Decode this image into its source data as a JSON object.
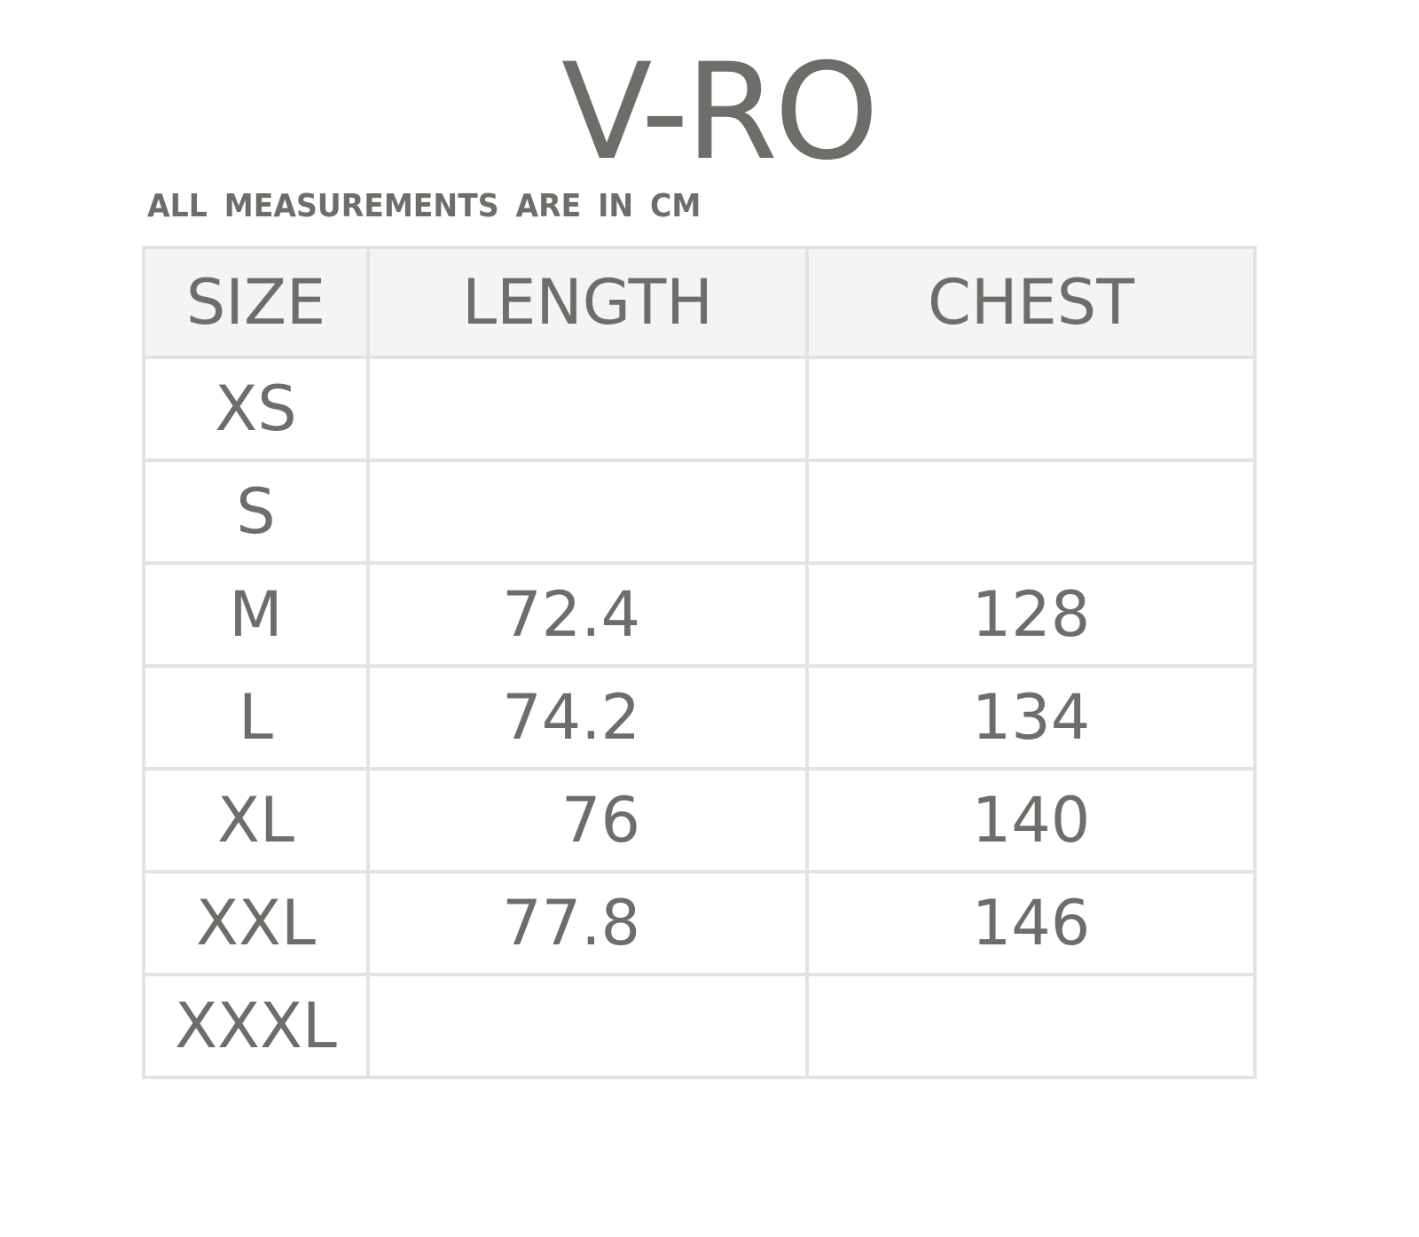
{
  "title": "V-RO",
  "subtitle": "ALL MEASUREMENTS ARE IN CM",
  "table": {
    "headers": [
      "SIZE",
      "LENGTH",
      "CHEST"
    ],
    "rows": [
      {
        "size": "XS",
        "length": "",
        "chest": ""
      },
      {
        "size": "S",
        "length": "",
        "chest": ""
      },
      {
        "size": "M",
        "length": "72.4",
        "chest": "128"
      },
      {
        "size": "L",
        "length": "74.2",
        "chest": "134"
      },
      {
        "size": "XL",
        "length": "76",
        "chest": "140"
      },
      {
        "size": "XXL",
        "length": "77.8",
        "chest": "146"
      },
      {
        "size": "XXXL",
        "length": "",
        "chest": ""
      }
    ]
  }
}
